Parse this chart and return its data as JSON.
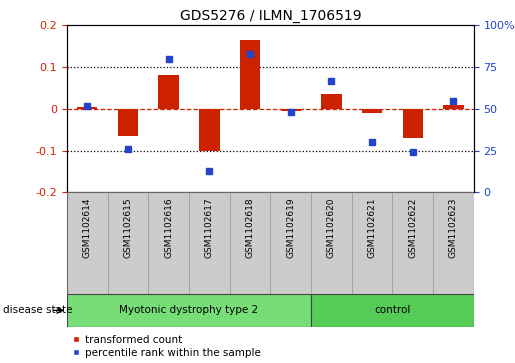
{
  "title": "GDS5276 / ILMN_1706519",
  "samples": [
    "GSM1102614",
    "GSM1102615",
    "GSM1102616",
    "GSM1102617",
    "GSM1102618",
    "GSM1102619",
    "GSM1102620",
    "GSM1102621",
    "GSM1102622",
    "GSM1102623"
  ],
  "red_values": [
    0.005,
    -0.065,
    0.082,
    -0.102,
    0.165,
    -0.005,
    0.035,
    -0.01,
    -0.07,
    0.01
  ],
  "blue_values_pct": [
    52,
    26,
    80,
    13,
    83,
    48,
    67,
    30,
    24,
    55
  ],
  "ylim_left": [
    -0.2,
    0.2
  ],
  "ylim_right": [
    0,
    100
  ],
  "yticks_left": [
    -0.2,
    -0.1,
    0.0,
    0.1,
    0.2
  ],
  "yticks_right": [
    0,
    25,
    50,
    75,
    100
  ],
  "red_color": "#cc2200",
  "blue_color": "#2244cc",
  "zero_line_color": "#cc2200",
  "grid_color": "#000000",
  "disease_groups": [
    {
      "label": "Myotonic dystrophy type 2",
      "start": 0,
      "end": 6,
      "color": "#77dd77"
    },
    {
      "label": "control",
      "start": 6,
      "end": 10,
      "color": "#55cc55"
    }
  ],
  "disease_state_label": "disease state",
  "legend_red": "transformed count",
  "legend_blue": "percentile rank within the sample",
  "bar_width": 0.5,
  "tick_bg_color": "#cccccc",
  "fig_width": 5.15,
  "fig_height": 3.63,
  "dpi": 100
}
